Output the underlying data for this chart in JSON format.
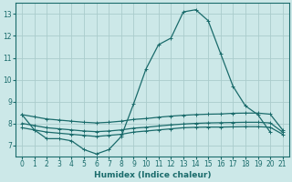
{
  "title": "",
  "xlabel": "Humidex (Indice chaleur)",
  "ylabel": "",
  "background_color": "#cce8e8",
  "grid_color": "#aacccc",
  "line_color": "#1a6b6b",
  "xlim": [
    -0.5,
    21.5
  ],
  "ylim": [
    6.5,
    13.5
  ],
  "yticks": [
    7,
    8,
    9,
    10,
    11,
    12,
    13
  ],
  "xticks": [
    0,
    1,
    2,
    3,
    4,
    5,
    6,
    7,
    8,
    9,
    10,
    11,
    12,
    13,
    14,
    15,
    16,
    17,
    18,
    19,
    20,
    21
  ],
  "series": [
    {
      "x": [
        0,
        1,
        2,
        3,
        4,
        5,
        6,
        7,
        8,
        9,
        10,
        11,
        12,
        13,
        14,
        15,
        16,
        17,
        18,
        19,
        20
      ],
      "y": [
        8.4,
        7.7,
        7.3,
        7.3,
        7.2,
        6.8,
        6.6,
        6.8,
        7.4,
        8.9,
        10.5,
        11.6,
        11.9,
        13.1,
        13.2,
        12.7,
        11.2,
        9.7,
        8.8,
        8.4,
        7.6
      ]
    },
    {
      "x": [
        0,
        1,
        2,
        3,
        4,
        5,
        6,
        7,
        8,
        9,
        10,
        11,
        12,
        13,
        14,
        15,
        16,
        17,
        18,
        19,
        20,
        21
      ],
      "y": [
        7.8,
        7.7,
        7.6,
        7.55,
        7.5,
        7.45,
        7.4,
        7.45,
        7.5,
        7.6,
        7.65,
        7.7,
        7.75,
        7.8,
        7.82,
        7.83,
        7.83,
        7.84,
        7.85,
        7.85,
        7.82,
        7.5
      ]
    },
    {
      "x": [
        0,
        1,
        2,
        3,
        4,
        5,
        6,
        7,
        8,
        9,
        10,
        11,
        12,
        13,
        14,
        15,
        16,
        17,
        18,
        19,
        20,
        21
      ],
      "y": [
        8.0,
        7.9,
        7.8,
        7.75,
        7.7,
        7.65,
        7.62,
        7.65,
        7.7,
        7.78,
        7.82,
        7.88,
        7.93,
        7.97,
        8.0,
        8.02,
        8.03,
        8.04,
        8.05,
        8.05,
        8.02,
        7.6
      ]
    },
    {
      "x": [
        0,
        1,
        2,
        3,
        4,
        5,
        6,
        7,
        8,
        9,
        10,
        11,
        12,
        13,
        14,
        15,
        16,
        17,
        18,
        19,
        20,
        21
      ],
      "y": [
        8.4,
        8.3,
        8.2,
        8.15,
        8.1,
        8.05,
        8.02,
        8.05,
        8.1,
        8.18,
        8.22,
        8.28,
        8.33,
        8.37,
        8.4,
        8.42,
        8.43,
        8.46,
        8.47,
        8.47,
        8.42,
        7.7
      ]
    }
  ],
  "marker": "+",
  "markersize": 3,
  "linewidth": 0.9,
  "tick_fontsize": 5.5,
  "xlabel_fontsize": 6.5
}
